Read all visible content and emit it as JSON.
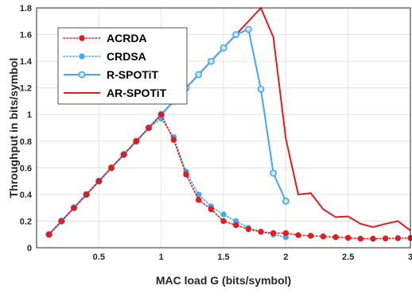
{
  "chart_data": {
    "type": "line",
    "title": "",
    "xlabel": "MAC load G (bits/symbol)",
    "ylabel": "Throughput in bits/symbol",
    "xlim": [
      0,
      3
    ],
    "ylim": [
      0,
      1.8
    ],
    "x_ticks": [
      "0.5",
      "1",
      "1.5",
      "2",
      "2.5",
      "3"
    ],
    "y_ticks": [
      "0",
      "0.2",
      "0.4",
      "0.6",
      "0.8",
      "1",
      "1.2",
      "1.4",
      "1.6",
      "1.8"
    ],
    "grid": true,
    "legend_position": "top-left",
    "series": [
      {
        "name": "ACRDA",
        "color": "#e41a1c",
        "line_style": "dotted",
        "marker": "filled-circle",
        "x": [
          0.1,
          0.2,
          0.3,
          0.4,
          0.5,
          0.6,
          0.7,
          0.8,
          0.9,
          1.0,
          1.1,
          1.2,
          1.3,
          1.4,
          1.5,
          1.6,
          1.7,
          1.8,
          1.9,
          2.0,
          2.1,
          2.2,
          2.3,
          2.4,
          2.5,
          2.6,
          2.7,
          2.8,
          2.9,
          3.0
        ],
        "y": [
          0.1,
          0.2,
          0.3,
          0.4,
          0.5,
          0.6,
          0.7,
          0.8,
          0.9,
          1.0,
          0.81,
          0.55,
          0.36,
          0.29,
          0.2,
          0.17,
          0.14,
          0.12,
          0.11,
          0.11,
          0.095,
          0.09,
          0.085,
          0.08,
          0.075,
          0.068,
          0.068,
          0.07,
          0.072,
          0.073
        ]
      },
      {
        "name": "CRDSA",
        "color": "#3fa9f5",
        "line_style": "dotted",
        "marker": "filled-circle",
        "x": [
          0.1,
          0.2,
          0.3,
          0.4,
          0.5,
          0.6,
          0.7,
          0.8,
          0.9,
          1.0,
          1.1,
          1.2,
          1.3,
          1.4,
          1.5,
          1.6,
          1.7,
          1.8,
          1.9,
          2.0
        ],
        "y": [
          0.1,
          0.2,
          0.3,
          0.4,
          0.5,
          0.6,
          0.7,
          0.8,
          0.9,
          0.97,
          0.83,
          0.57,
          0.4,
          0.31,
          0.25,
          0.2,
          0.15,
          0.12,
          0.1,
          0.08
        ]
      },
      {
        "name": "R-SPOTiT",
        "color": "#3fa9f5",
        "line_style": "solid",
        "marker": "open-circle",
        "x": [
          0.1,
          0.2,
          0.3,
          0.4,
          0.5,
          0.6,
          0.7,
          0.8,
          0.9,
          1.0,
          1.1,
          1.2,
          1.3,
          1.4,
          1.5,
          1.6,
          1.7,
          1.8,
          1.9,
          2.0
        ],
        "y": [
          0.1,
          0.2,
          0.3,
          0.4,
          0.5,
          0.6,
          0.7,
          0.8,
          0.9,
          1.0,
          1.1,
          1.2,
          1.3,
          1.4,
          1.5,
          1.6,
          1.64,
          1.19,
          0.56,
          0.35
        ]
      },
      {
        "name": "AR-SPOTiT",
        "color": "#e41a1c",
        "line_style": "solid",
        "marker": "none",
        "x": [
          0.1,
          0.2,
          0.3,
          0.4,
          0.5,
          0.6,
          0.7,
          0.8,
          0.9,
          1.0,
          1.1,
          1.2,
          1.3,
          1.4,
          1.5,
          1.6,
          1.7,
          1.8,
          1.9,
          2.0,
          2.1,
          2.2,
          2.3,
          2.4,
          2.5,
          2.6,
          2.7,
          2.8,
          2.9,
          3.0
        ],
        "y": [
          0.1,
          0.2,
          0.3,
          0.4,
          0.5,
          0.6,
          0.7,
          0.8,
          0.9,
          1.0,
          1.1,
          1.2,
          1.3,
          1.4,
          1.5,
          1.6,
          1.7,
          1.8,
          1.58,
          0.82,
          0.4,
          0.41,
          0.29,
          0.23,
          0.235,
          0.18,
          0.155,
          0.18,
          0.2,
          0.13
        ]
      }
    ]
  }
}
